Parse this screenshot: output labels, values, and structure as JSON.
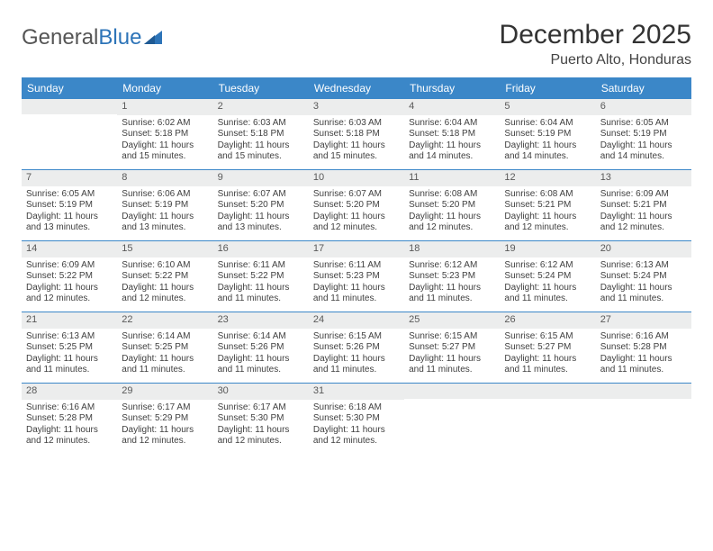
{
  "logo": {
    "part1": "General",
    "part2": "Blue"
  },
  "title": "December 2025",
  "location": "Puerto Alto, Honduras",
  "colors": {
    "header_bg": "#3b87c8",
    "header_text": "#ffffff",
    "daynum_bg": "#eceded",
    "row_border": "#3b87c8",
    "logo_blue": "#2d74b8"
  },
  "dayNames": [
    "Sunday",
    "Monday",
    "Tuesday",
    "Wednesday",
    "Thursday",
    "Friday",
    "Saturday"
  ],
  "weeks": [
    [
      {
        "n": "",
        "l": []
      },
      {
        "n": "1",
        "l": [
          "Sunrise: 6:02 AM",
          "Sunset: 5:18 PM",
          "Daylight: 11 hours",
          "and 15 minutes."
        ]
      },
      {
        "n": "2",
        "l": [
          "Sunrise: 6:03 AM",
          "Sunset: 5:18 PM",
          "Daylight: 11 hours",
          "and 15 minutes."
        ]
      },
      {
        "n": "3",
        "l": [
          "Sunrise: 6:03 AM",
          "Sunset: 5:18 PM",
          "Daylight: 11 hours",
          "and 15 minutes."
        ]
      },
      {
        "n": "4",
        "l": [
          "Sunrise: 6:04 AM",
          "Sunset: 5:18 PM",
          "Daylight: 11 hours",
          "and 14 minutes."
        ]
      },
      {
        "n": "5",
        "l": [
          "Sunrise: 6:04 AM",
          "Sunset: 5:19 PM",
          "Daylight: 11 hours",
          "and 14 minutes."
        ]
      },
      {
        "n": "6",
        "l": [
          "Sunrise: 6:05 AM",
          "Sunset: 5:19 PM",
          "Daylight: 11 hours",
          "and 14 minutes."
        ]
      }
    ],
    [
      {
        "n": "7",
        "l": [
          "Sunrise: 6:05 AM",
          "Sunset: 5:19 PM",
          "Daylight: 11 hours",
          "and 13 minutes."
        ]
      },
      {
        "n": "8",
        "l": [
          "Sunrise: 6:06 AM",
          "Sunset: 5:19 PM",
          "Daylight: 11 hours",
          "and 13 minutes."
        ]
      },
      {
        "n": "9",
        "l": [
          "Sunrise: 6:07 AM",
          "Sunset: 5:20 PM",
          "Daylight: 11 hours",
          "and 13 minutes."
        ]
      },
      {
        "n": "10",
        "l": [
          "Sunrise: 6:07 AM",
          "Sunset: 5:20 PM",
          "Daylight: 11 hours",
          "and 12 minutes."
        ]
      },
      {
        "n": "11",
        "l": [
          "Sunrise: 6:08 AM",
          "Sunset: 5:20 PM",
          "Daylight: 11 hours",
          "and 12 minutes."
        ]
      },
      {
        "n": "12",
        "l": [
          "Sunrise: 6:08 AM",
          "Sunset: 5:21 PM",
          "Daylight: 11 hours",
          "and 12 minutes."
        ]
      },
      {
        "n": "13",
        "l": [
          "Sunrise: 6:09 AM",
          "Sunset: 5:21 PM",
          "Daylight: 11 hours",
          "and 12 minutes."
        ]
      }
    ],
    [
      {
        "n": "14",
        "l": [
          "Sunrise: 6:09 AM",
          "Sunset: 5:22 PM",
          "Daylight: 11 hours",
          "and 12 minutes."
        ]
      },
      {
        "n": "15",
        "l": [
          "Sunrise: 6:10 AM",
          "Sunset: 5:22 PM",
          "Daylight: 11 hours",
          "and 12 minutes."
        ]
      },
      {
        "n": "16",
        "l": [
          "Sunrise: 6:11 AM",
          "Sunset: 5:22 PM",
          "Daylight: 11 hours",
          "and 11 minutes."
        ]
      },
      {
        "n": "17",
        "l": [
          "Sunrise: 6:11 AM",
          "Sunset: 5:23 PM",
          "Daylight: 11 hours",
          "and 11 minutes."
        ]
      },
      {
        "n": "18",
        "l": [
          "Sunrise: 6:12 AM",
          "Sunset: 5:23 PM",
          "Daylight: 11 hours",
          "and 11 minutes."
        ]
      },
      {
        "n": "19",
        "l": [
          "Sunrise: 6:12 AM",
          "Sunset: 5:24 PM",
          "Daylight: 11 hours",
          "and 11 minutes."
        ]
      },
      {
        "n": "20",
        "l": [
          "Sunrise: 6:13 AM",
          "Sunset: 5:24 PM",
          "Daylight: 11 hours",
          "and 11 minutes."
        ]
      }
    ],
    [
      {
        "n": "21",
        "l": [
          "Sunrise: 6:13 AM",
          "Sunset: 5:25 PM",
          "Daylight: 11 hours",
          "and 11 minutes."
        ]
      },
      {
        "n": "22",
        "l": [
          "Sunrise: 6:14 AM",
          "Sunset: 5:25 PM",
          "Daylight: 11 hours",
          "and 11 minutes."
        ]
      },
      {
        "n": "23",
        "l": [
          "Sunrise: 6:14 AM",
          "Sunset: 5:26 PM",
          "Daylight: 11 hours",
          "and 11 minutes."
        ]
      },
      {
        "n": "24",
        "l": [
          "Sunrise: 6:15 AM",
          "Sunset: 5:26 PM",
          "Daylight: 11 hours",
          "and 11 minutes."
        ]
      },
      {
        "n": "25",
        "l": [
          "Sunrise: 6:15 AM",
          "Sunset: 5:27 PM",
          "Daylight: 11 hours",
          "and 11 minutes."
        ]
      },
      {
        "n": "26",
        "l": [
          "Sunrise: 6:15 AM",
          "Sunset: 5:27 PM",
          "Daylight: 11 hours",
          "and 11 minutes."
        ]
      },
      {
        "n": "27",
        "l": [
          "Sunrise: 6:16 AM",
          "Sunset: 5:28 PM",
          "Daylight: 11 hours",
          "and 11 minutes."
        ]
      }
    ],
    [
      {
        "n": "28",
        "l": [
          "Sunrise: 6:16 AM",
          "Sunset: 5:28 PM",
          "Daylight: 11 hours",
          "and 12 minutes."
        ]
      },
      {
        "n": "29",
        "l": [
          "Sunrise: 6:17 AM",
          "Sunset: 5:29 PM",
          "Daylight: 11 hours",
          "and 12 minutes."
        ]
      },
      {
        "n": "30",
        "l": [
          "Sunrise: 6:17 AM",
          "Sunset: 5:30 PM",
          "Daylight: 11 hours",
          "and 12 minutes."
        ]
      },
      {
        "n": "31",
        "l": [
          "Sunrise: 6:18 AM",
          "Sunset: 5:30 PM",
          "Daylight: 11 hours",
          "and 12 minutes."
        ]
      },
      {
        "n": "",
        "l": []
      },
      {
        "n": "",
        "l": []
      },
      {
        "n": "",
        "l": []
      }
    ]
  ]
}
